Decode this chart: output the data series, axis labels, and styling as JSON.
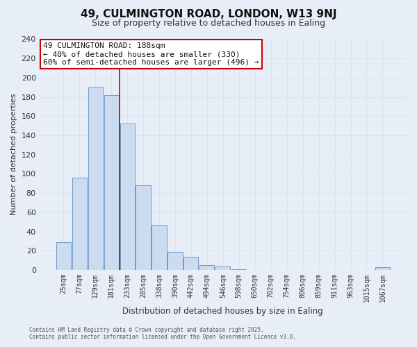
{
  "title": "49, CULMINGTON ROAD, LONDON, W13 9NJ",
  "subtitle": "Size of property relative to detached houses in Ealing",
  "xlabel": "Distribution of detached houses by size in Ealing",
  "ylabel": "Number of detached properties",
  "bar_labels": [
    "25sqm",
    "77sqm",
    "129sqm",
    "181sqm",
    "233sqm",
    "285sqm",
    "338sqm",
    "390sqm",
    "442sqm",
    "494sqm",
    "546sqm",
    "598sqm",
    "650sqm",
    "702sqm",
    "754sqm",
    "806sqm",
    "859sqm",
    "911sqm",
    "963sqm",
    "1015sqm",
    "1067sqm"
  ],
  "bar_values": [
    29,
    96,
    190,
    182,
    152,
    88,
    47,
    19,
    14,
    5,
    4,
    1,
    0,
    0,
    0,
    0,
    0,
    0,
    0,
    0,
    3
  ],
  "bar_color": "#ccdcf0",
  "bar_edge_color": "#5b8ec4",
  "ylim": [
    0,
    240
  ],
  "yticks": [
    0,
    20,
    40,
    60,
    80,
    100,
    120,
    140,
    160,
    180,
    200,
    220,
    240
  ],
  "annotation_title": "49 CULMINGTON ROAD: 188sqm",
  "annotation_line1": "← 40% of detached houses are smaller (330)",
  "annotation_line2": "60% of semi-detached houses are larger (496) →",
  "annotation_box_color": "#ffffff",
  "annotation_box_edge_color": "#cc0000",
  "footer_line1": "Contains HM Land Registry data © Crown copyright and database right 2025.",
  "footer_line2": "Contains public sector information licensed under the Open Government Licence v3.0.",
  "property_bar_index": 3,
  "vline_color": "#cc0000",
  "grid_color": "#d8e4f0",
  "background_color": "#e8eef8"
}
